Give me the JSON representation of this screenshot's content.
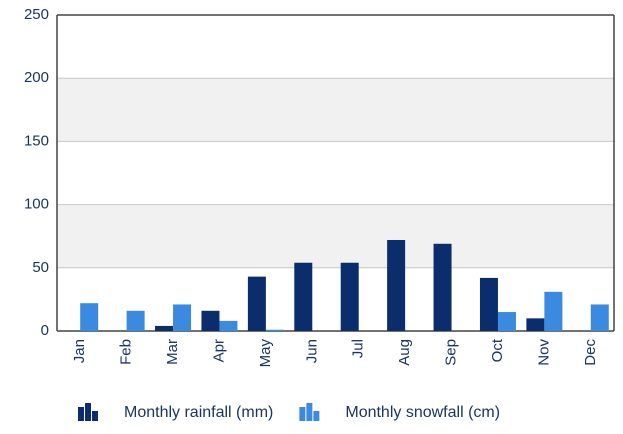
{
  "chart_data": {
    "type": "bar",
    "categories": [
      "Jan",
      "Feb",
      "Mar",
      "Apr",
      "May",
      "Jun",
      "Jul",
      "Aug",
      "Sep",
      "Oct",
      "Nov",
      "Dec"
    ],
    "series": [
      {
        "name": "Monthly rainfall (mm)",
        "color": "#0b2d6b",
        "values": [
          0,
          0,
          4,
          16,
          43,
          54,
          54,
          72,
          69,
          42,
          10,
          0
        ]
      },
      {
        "name": "Monthly snowfall (cm)",
        "color": "#3a8be0",
        "values": [
          22,
          16,
          21,
          8,
          1,
          0,
          0,
          0,
          0,
          15,
          31,
          21
        ]
      }
    ],
    "ylim": [
      0,
      250
    ],
    "yticks": [
      0,
      50,
      100,
      150,
      200,
      250
    ],
    "grid": true,
    "banded": true,
    "legend": "bottom"
  }
}
